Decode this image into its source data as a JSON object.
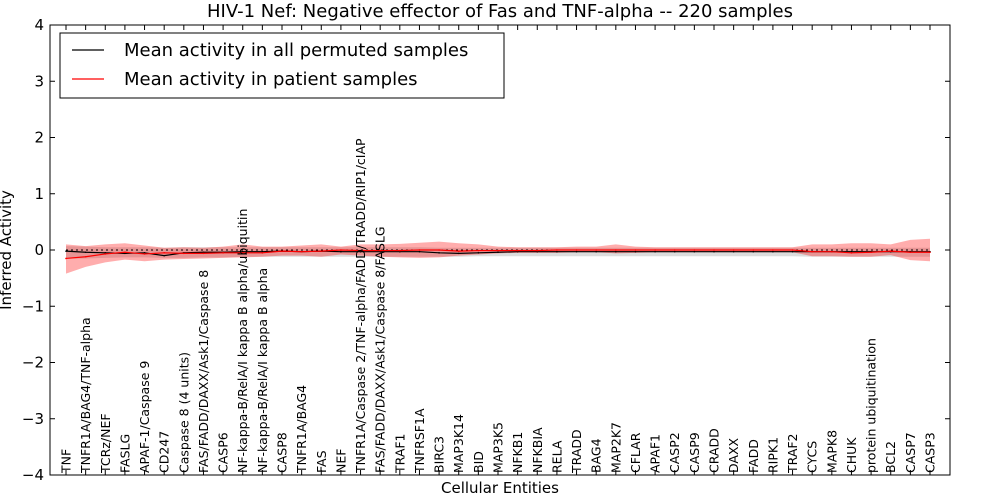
{
  "chart_data": {
    "type": "line",
    "title": "HIV-1 Nef: Negative effector of Fas and TNF-alpha -- 220 samples",
    "xlabel": "Cellular Entities",
    "ylabel": "Inferred Activity",
    "ylim": [
      -4,
      4
    ],
    "yticks": [
      "4",
      "3",
      "2",
      "1",
      "0",
      "−1",
      "−2",
      "−3",
      "−4"
    ],
    "legend_position": "top-left",
    "categories": [
      "TNF",
      "TNFR1A/BAG4/TNF-alpha",
      "TCRz/NEF",
      "FASLG",
      "APAF-1/Caspase 9",
      "CD247",
      "Caspase 8 (4 units)",
      "FAS/FADD/DAXX/Ask1/Caspase 8",
      "CASP6",
      "NF-kappa-B/RelA/I kappa B alpha/ubiquitin",
      "NF-kappa-B/RelA/I kappa B alpha",
      "CASP8",
      "TNFR1A/BAG4",
      "FAS",
      "NEF",
      "TNFR1A/Caspase 2/TNF-alpha/FADD/TRADD/RIP1/cIAP",
      "FAS/FADD/DAXX/Ask1/Caspase 8/FASLG",
      "TRAF1",
      "TNFRSF1A",
      "BIRC3",
      "MAP3K14",
      "BID",
      "MAP3K5",
      "NFKB1",
      "NFKBIA",
      "RELA",
      "TRADD",
      "BAG4",
      "MAP2K7",
      "CFLAR",
      "APAF1",
      "CASP2",
      "CASP9",
      "CRADD",
      "DAXX",
      "FADD",
      "RIPK1",
      "TRAF2",
      "CYCS",
      "MAPK8",
      "CHUK",
      "protein ubiquitination",
      "BCL2",
      "CASP7",
      "CASP3"
    ],
    "series": [
      {
        "name": "Mean activity in all permuted samples",
        "color": "#000000",
        "values": [
          -0.02,
          -0.04,
          -0.05,
          -0.06,
          -0.05,
          -0.1,
          -0.05,
          -0.04,
          -0.04,
          -0.03,
          -0.03,
          -0.02,
          -0.03,
          -0.02,
          -0.03,
          -0.03,
          -0.03,
          -0.03,
          -0.03,
          -0.05,
          -0.06,
          -0.05,
          -0.04,
          -0.03,
          -0.03,
          -0.03,
          -0.03,
          -0.03,
          -0.03,
          -0.03,
          -0.03,
          -0.03,
          -0.03,
          -0.03,
          -0.03,
          -0.03,
          -0.03,
          -0.03,
          -0.03,
          -0.03,
          -0.03,
          -0.03,
          -0.03,
          -0.03,
          -0.03
        ],
        "lower": [
          -0.15,
          -0.15,
          -0.14,
          -0.13,
          -0.13,
          -0.14,
          -0.14,
          -0.13,
          -0.13,
          -0.12,
          -0.12,
          -0.12,
          -0.12,
          -0.12,
          -0.12,
          -0.12,
          -0.12,
          -0.12,
          -0.12,
          -0.12,
          -0.12,
          -0.11,
          -0.11,
          -0.11,
          -0.11,
          -0.11,
          -0.11,
          -0.11,
          -0.11,
          -0.11,
          -0.11,
          -0.11,
          -0.11,
          -0.11,
          -0.11,
          -0.11,
          -0.11,
          -0.11,
          -0.12,
          -0.12,
          -0.12,
          -0.12,
          -0.12,
          -0.12,
          -0.12
        ],
        "upper": [
          0.07,
          0.06,
          0.05,
          0.05,
          0.05,
          0.04,
          0.05,
          0.05,
          0.05,
          0.05,
          0.05,
          0.05,
          0.05,
          0.05,
          0.05,
          0.05,
          0.05,
          0.05,
          0.05,
          0.04,
          0.04,
          0.04,
          0.04,
          0.04,
          0.04,
          0.04,
          0.04,
          0.04,
          0.04,
          0.04,
          0.04,
          0.04,
          0.04,
          0.04,
          0.04,
          0.04,
          0.04,
          0.04,
          0.04,
          0.04,
          0.04,
          0.04,
          0.04,
          0.04,
          0.04
        ]
      },
      {
        "name": "Mean activity in patient samples",
        "color": "#ff0000",
        "values": [
          -0.15,
          -0.12,
          -0.07,
          -0.04,
          -0.07,
          -0.05,
          -0.06,
          -0.06,
          -0.05,
          -0.05,
          -0.05,
          -0.02,
          -0.03,
          -0.02,
          0.0,
          -0.01,
          -0.01,
          -0.01,
          0.0,
          0.0,
          -0.02,
          -0.01,
          -0.01,
          -0.01,
          -0.01,
          0.0,
          0.0,
          0.0,
          0.0,
          0.0,
          0.0,
          0.0,
          0.0,
          0.0,
          0.0,
          0.0,
          0.0,
          0.0,
          -0.03,
          -0.03,
          -0.05,
          -0.04,
          -0.02,
          -0.04,
          -0.04
        ],
        "lower": [
          -0.42,
          -0.3,
          -0.22,
          -0.17,
          -0.2,
          -0.17,
          -0.16,
          -0.15,
          -0.14,
          -0.13,
          -0.12,
          -0.1,
          -0.1,
          -0.12,
          -0.08,
          -0.1,
          -0.12,
          -0.13,
          -0.14,
          -0.13,
          -0.1,
          -0.08,
          -0.06,
          -0.05,
          -0.05,
          -0.05,
          -0.04,
          -0.04,
          -0.06,
          -0.05,
          -0.04,
          -0.04,
          -0.04,
          -0.04,
          -0.04,
          -0.04,
          -0.04,
          -0.04,
          -0.11,
          -0.11,
          -0.12,
          -0.12,
          -0.09,
          -0.18,
          -0.2
        ],
        "upper": [
          0.1,
          0.07,
          0.1,
          0.12,
          0.08,
          0.04,
          0.05,
          0.04,
          0.06,
          0.1,
          0.06,
          0.06,
          0.08,
          0.1,
          0.06,
          0.1,
          0.1,
          0.11,
          0.13,
          0.15,
          0.12,
          0.1,
          0.06,
          0.05,
          0.05,
          0.05,
          0.06,
          0.06,
          0.1,
          0.06,
          0.05,
          0.05,
          0.05,
          0.05,
          0.05,
          0.05,
          0.05,
          0.05,
          0.1,
          0.1,
          0.12,
          0.12,
          0.1,
          0.18,
          0.2
        ]
      }
    ]
  }
}
